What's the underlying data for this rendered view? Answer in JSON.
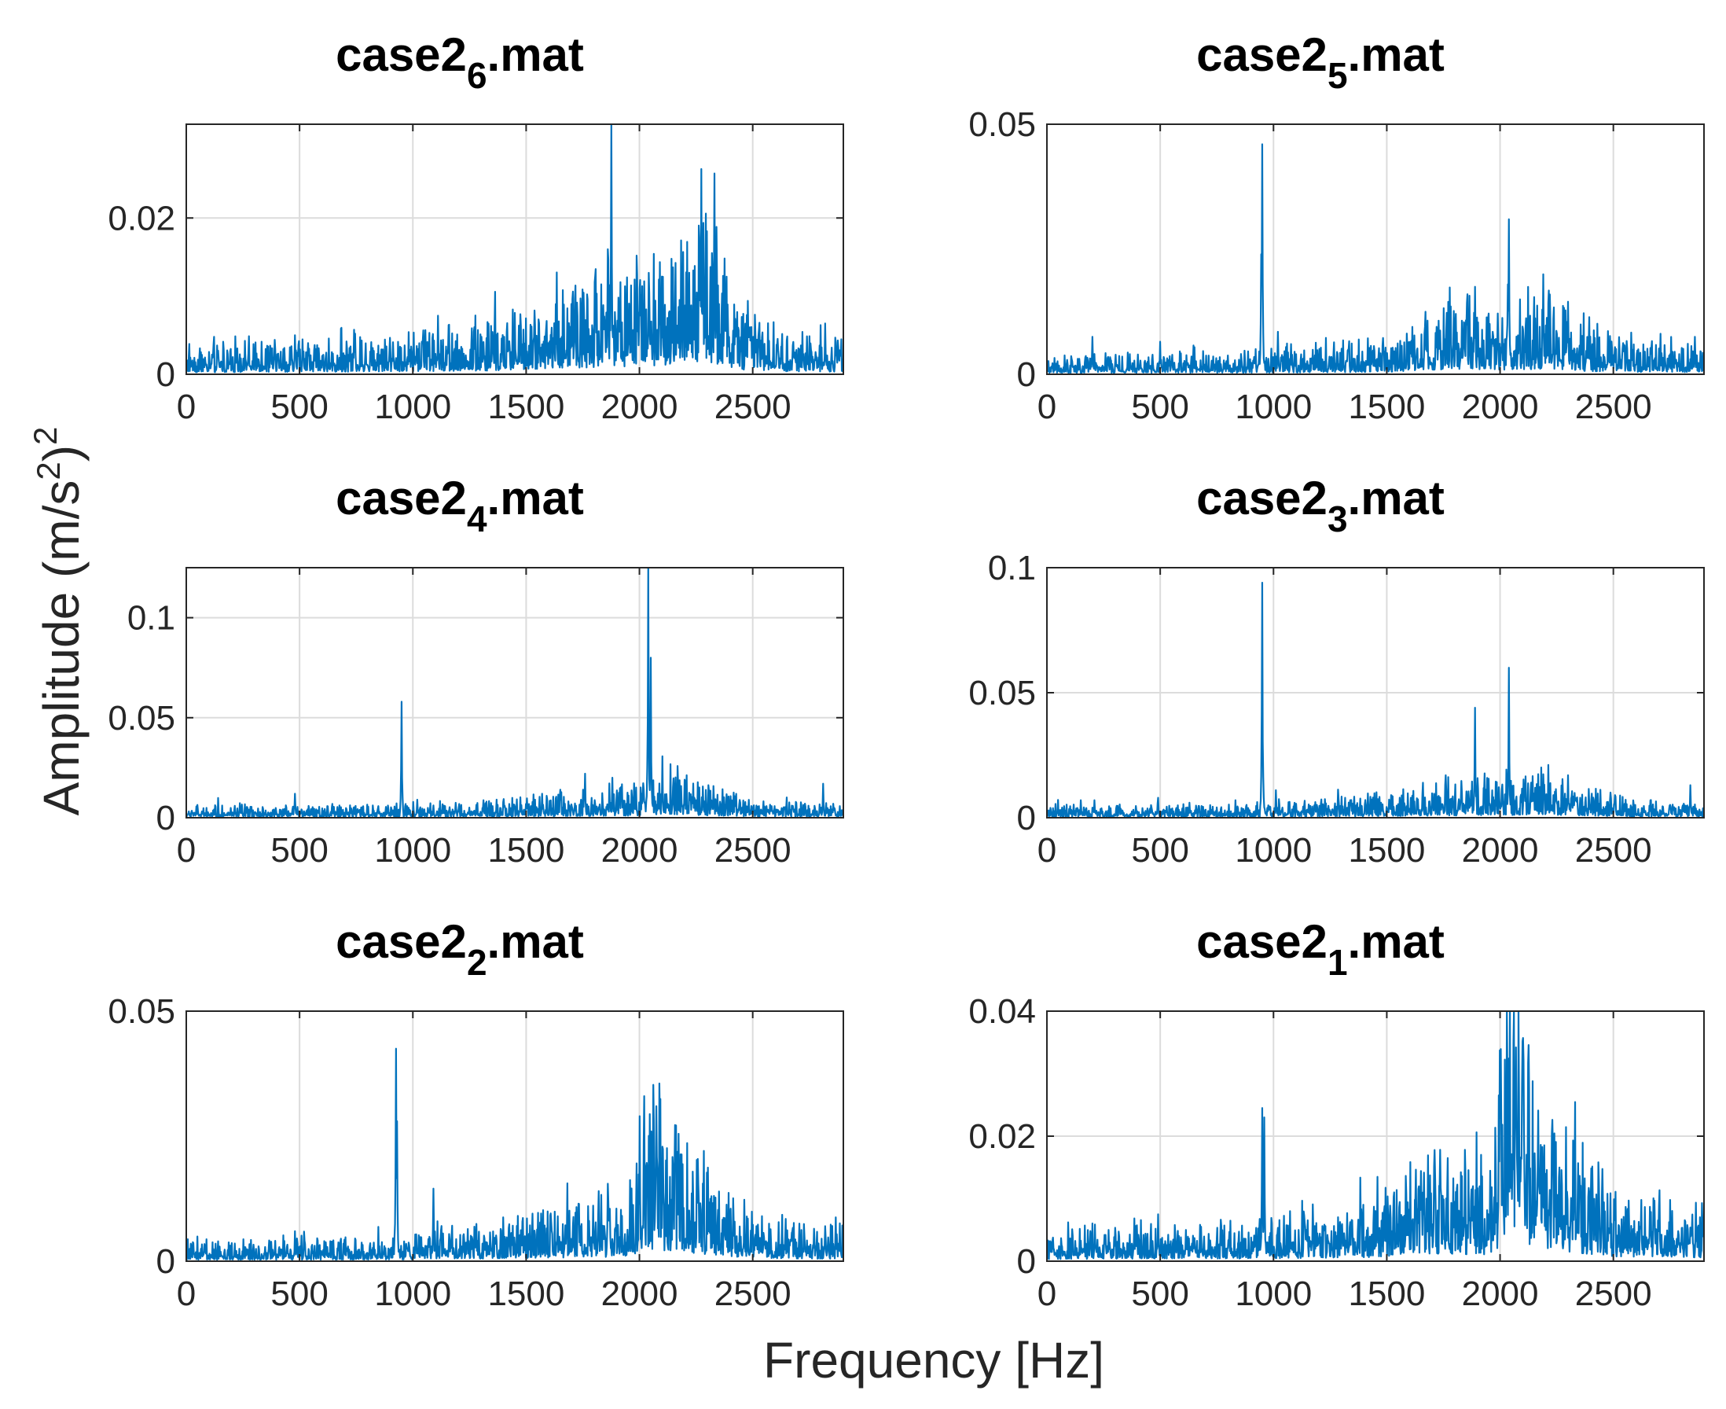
{
  "figure": {
    "xlabel": "Frequency [Hz]",
    "ylabel_main": "Amplitude (m/s",
    "ylabel_sup_inner": "2",
    "ylabel_close": ")",
    "ylabel_sup_outer": "2",
    "line_color": "#0072BD",
    "grid_color": "#dcdcdc"
  },
  "chart_data": [
    {
      "type": "line",
      "title_base": "case2",
      "title_sub": "6",
      "title_suffix": ".mat",
      "xlim": [
        0,
        2900
      ],
      "ylim": [
        0,
        0.032
      ],
      "xticks": [
        0,
        500,
        1000,
        1500,
        2000,
        2500
      ],
      "yticks": [
        0,
        0.02
      ],
      "ytick_labels": [
        "0",
        "0.02"
      ],
      "xtick_labels": [
        "0",
        "500",
        "1000",
        "1500",
        "2000",
        "2500"
      ],
      "noise_profile": [
        [
          0,
          0.0017
        ],
        [
          800,
          0.0022
        ],
        [
          1400,
          0.0032
        ],
        [
          1600,
          0.0045
        ],
        [
          1800,
          0.006
        ],
        [
          1900,
          0.0055
        ],
        [
          2000,
          0.0065
        ],
        [
          2200,
          0.009
        ],
        [
          2350,
          0.008
        ],
        [
          2450,
          0.004
        ],
        [
          2600,
          0.0025
        ],
        [
          2900,
          0.002
        ]
      ],
      "peaks": [
        [
          1875,
          0.032
        ],
        [
          1860,
          0.016
        ],
        [
          2265,
          0.0175
        ],
        [
          2100,
          0.0125
        ],
        [
          2220,
          0.013
        ],
        [
          1700,
          0.009
        ],
        [
          1110,
          0.0075
        ],
        [
          480,
          0.005
        ],
        [
          2820,
          0.0065
        ],
        [
          2000,
          0.011
        ],
        [
          2290,
          0.0135
        ]
      ]
    },
    {
      "type": "line",
      "title_base": "case2",
      "title_sub": "5",
      "title_suffix": ".mat",
      "xlim": [
        0,
        2900
      ],
      "ylim": [
        0,
        0.05
      ],
      "xticks": [
        0,
        500,
        1000,
        1500,
        2000,
        2500
      ],
      "yticks": [
        0,
        0.05
      ],
      "ytick_labels": [
        "0",
        "0.05"
      ],
      "xtick_labels": [
        "0",
        "500",
        "1000",
        "1500",
        "2000",
        "2500"
      ],
      "noise_profile": [
        [
          0,
          0.0015
        ],
        [
          900,
          0.002
        ],
        [
          1500,
          0.003
        ],
        [
          1800,
          0.007
        ],
        [
          2000,
          0.006
        ],
        [
          2200,
          0.007
        ],
        [
          2400,
          0.004
        ],
        [
          2600,
          0.003
        ],
        [
          2900,
          0.0025
        ]
      ],
      "peaks": [
        [
          950,
          0.046
        ],
        [
          945,
          0.024
        ],
        [
          2040,
          0.031
        ],
        [
          1890,
          0.0175
        ],
        [
          2190,
          0.02
        ],
        [
          2300,
          0.0145
        ],
        [
          1670,
          0.0125
        ],
        [
          1020,
          0.0085
        ],
        [
          200,
          0.0075
        ],
        [
          500,
          0.0065
        ],
        [
          2860,
          0.0075
        ]
      ]
    },
    {
      "type": "line",
      "title_base": "case2",
      "title_sub": "4",
      "title_suffix": ".mat",
      "xlim": [
        0,
        2900
      ],
      "ylim": [
        0,
        0.125
      ],
      "xticks": [
        0,
        500,
        1000,
        1500,
        2000,
        2500
      ],
      "yticks": [
        0,
        0.05,
        0.1
      ],
      "ytick_labels": [
        "0",
        "0.05",
        "0.1"
      ],
      "xtick_labels": [
        "0",
        "500",
        "1000",
        "1500",
        "2000",
        "2500"
      ],
      "noise_profile": [
        [
          0,
          0.0025
        ],
        [
          900,
          0.0028
        ],
        [
          1500,
          0.004
        ],
        [
          1800,
          0.006
        ],
        [
          2000,
          0.007
        ],
        [
          2100,
          0.012
        ],
        [
          2300,
          0.008
        ],
        [
          2500,
          0.004
        ],
        [
          2900,
          0.003
        ]
      ],
      "peaks": [
        [
          2040,
          0.125
        ],
        [
          2050,
          0.08
        ],
        [
          950,
          0.058
        ],
        [
          480,
          0.012
        ],
        [
          1760,
          0.022
        ],
        [
          1880,
          0.02
        ],
        [
          2200,
          0.019
        ],
        [
          2810,
          0.017
        ],
        [
          1570,
          0.012
        ],
        [
          1650,
          0.014
        ],
        [
          1020,
          0.009
        ]
      ]
    },
    {
      "type": "line",
      "title_base": "case2",
      "title_sub": "3",
      "title_suffix": ".mat",
      "xlim": [
        0,
        2900
      ],
      "ylim": [
        0,
        0.1
      ],
      "xticks": [
        0,
        500,
        1000,
        1500,
        2000,
        2500
      ],
      "yticks": [
        0,
        0.05,
        0.1
      ],
      "ytick_labels": [
        "0",
        "0.05",
        "0.1"
      ],
      "xtick_labels": [
        "0",
        "500",
        "1000",
        "1500",
        "2000",
        "2500"
      ],
      "noise_profile": [
        [
          0,
          0.002
        ],
        [
          900,
          0.0025
        ],
        [
          1500,
          0.004
        ],
        [
          1800,
          0.006
        ],
        [
          2000,
          0.007
        ],
        [
          2200,
          0.008
        ],
        [
          2400,
          0.005
        ],
        [
          2600,
          0.003
        ],
        [
          2900,
          0.0025
        ]
      ],
      "peaks": [
        [
          950,
          0.094
        ],
        [
          2040,
          0.06
        ],
        [
          1890,
          0.044
        ],
        [
          1760,
          0.017
        ],
        [
          2300,
          0.017
        ],
        [
          1660,
          0.014
        ],
        [
          1010,
          0.011
        ],
        [
          490,
          0.008
        ],
        [
          2840,
          0.013
        ],
        [
          150,
          0.007
        ],
        [
          210,
          0.007
        ]
      ]
    },
    {
      "type": "line",
      "title_base": "case2",
      "title_sub": "2",
      "title_suffix": ".mat",
      "xlim": [
        0,
        2900
      ],
      "ylim": [
        0,
        0.05
      ],
      "xticks": [
        0,
        500,
        1000,
        1500,
        2000,
        2500
      ],
      "yticks": [
        0,
        0.05
      ],
      "ytick_labels": [
        "0",
        "0.05"
      ],
      "xtick_labels": [
        "0",
        "500",
        "1000",
        "1500",
        "2000",
        "2500"
      ],
      "noise_profile": [
        [
          0,
          0.0018
        ],
        [
          900,
          0.0022
        ],
        [
          1400,
          0.0035
        ],
        [
          1700,
          0.005
        ],
        [
          1950,
          0.006
        ],
        [
          2050,
          0.016
        ],
        [
          2150,
          0.013
        ],
        [
          2300,
          0.009
        ],
        [
          2500,
          0.004
        ],
        [
          2900,
          0.003
        ]
      ],
      "peaks": [
        [
          925,
          0.0425
        ],
        [
          930,
          0.028
        ],
        [
          2020,
          0.033
        ],
        [
          2090,
          0.028
        ],
        [
          1860,
          0.0155
        ],
        [
          1090,
          0.0145
        ],
        [
          2260,
          0.0155
        ],
        [
          1730,
          0.0115
        ],
        [
          480,
          0.006
        ],
        [
          2820,
          0.007
        ],
        [
          2000,
          0.029
        ]
      ]
    },
    {
      "type": "line",
      "title_base": "case2",
      "title_sub": "1",
      "title_suffix": ".mat",
      "xlim": [
        0,
        2900
      ],
      "ylim": [
        0,
        0.04
      ],
      "xticks": [
        0,
        500,
        1000,
        1500,
        2000,
        2500
      ],
      "yticks": [
        0,
        0.02,
        0.04
      ],
      "ytick_labels": [
        "0",
        "0.02",
        "0.04"
      ],
      "xtick_labels": [
        "0",
        "500",
        "1000",
        "1500",
        "2000",
        "2500"
      ],
      "noise_profile": [
        [
          0,
          0.0022
        ],
        [
          900,
          0.0028
        ],
        [
          1400,
          0.004
        ],
        [
          1700,
          0.008
        ],
        [
          1950,
          0.007
        ],
        [
          2050,
          0.025
        ],
        [
          2150,
          0.016
        ],
        [
          2300,
          0.01
        ],
        [
          2500,
          0.005
        ],
        [
          2900,
          0.004
        ]
      ],
      "peaks": [
        [
          2030,
          0.04
        ],
        [
          2060,
          0.035
        ],
        [
          950,
          0.0245
        ],
        [
          960,
          0.023
        ],
        [
          1770,
          0.0165
        ],
        [
          1880,
          0.012
        ],
        [
          490,
          0.0075
        ],
        [
          1660,
          0.011
        ],
        [
          2200,
          0.014
        ],
        [
          2350,
          0.0115
        ],
        [
          2100,
          0.03
        ]
      ]
    }
  ]
}
